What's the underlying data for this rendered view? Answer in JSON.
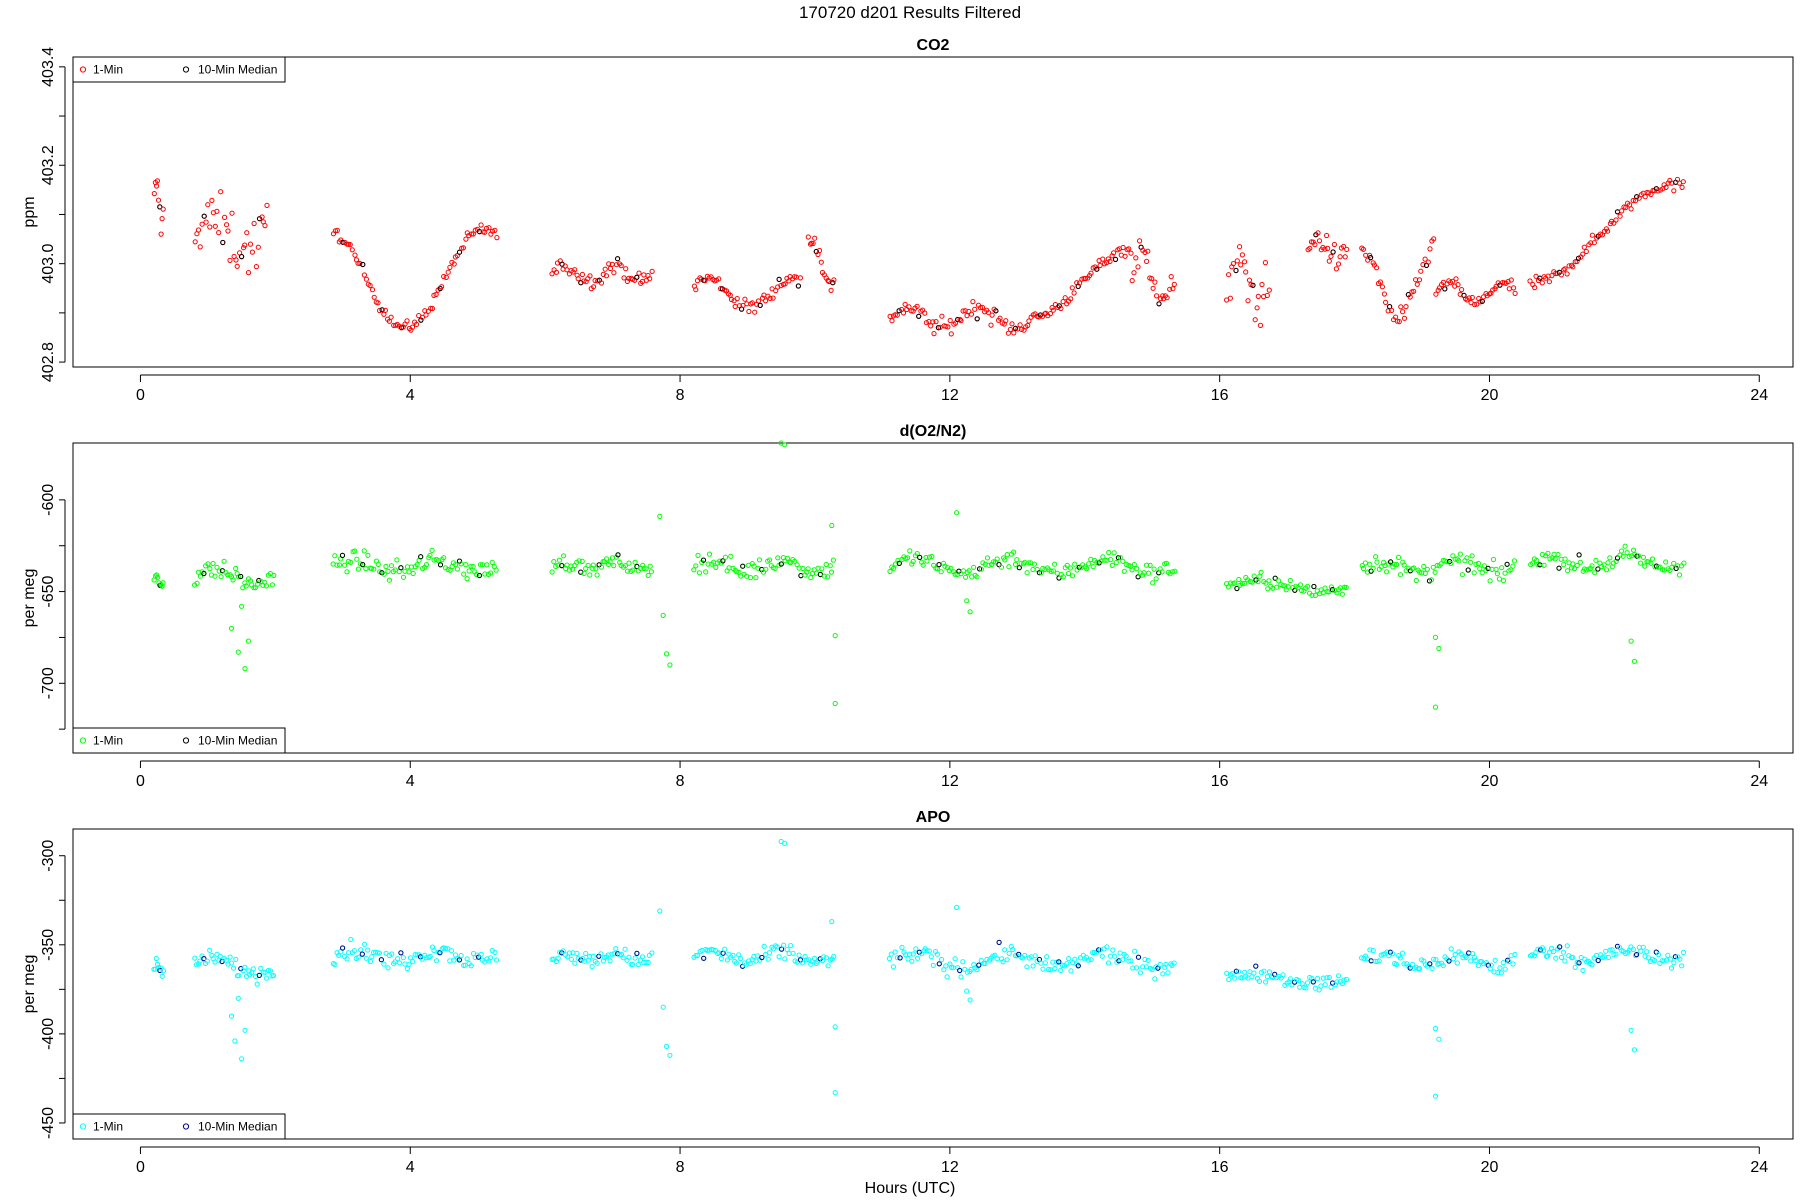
{
  "main_title": "170720    d201    Results Filtered",
  "xlabel": "Hours (UTC)",
  "colors": {
    "co2": "#ff0000",
    "o2": "#00ff00",
    "apo": "#00ffff",
    "apo_median": "#00008b",
    "median": "#000000"
  },
  "chart_data": [
    {
      "type": "scatter",
      "title": "CO2",
      "ylabel": "ppm",
      "xlim": [
        -1,
        24.5
      ],
      "ylim": [
        402.79,
        403.42
      ],
      "x_ticks": [
        0,
        4,
        8,
        12,
        16,
        20,
        24
      ],
      "y_ticks": [
        402.8,
        403.0,
        403.2,
        403.4
      ],
      "y_tick_labels": [
        "402.8",
        "403.0",
        "403.2",
        "403.4"
      ],
      "y_minor_ticks": [
        402.9,
        403.1,
        403.3
      ],
      "legend": {
        "position": "top-left",
        "entries": [
          "1-Min",
          "10-Min Median"
        ]
      },
      "series": [
        {
          "name": "1-Min",
          "color": "#ff0000",
          "segments": [
            {
              "x0": 0.2,
              "x1": 0.35,
              "ymid": 403.12,
              "amp": 0.04,
              "noise": 0.05,
              "cycles": 1,
              "phase": 0
            },
            {
              "x0": 0.8,
              "x1": 1.9,
              "ymid": 403.06,
              "amp": 0.03,
              "noise": 0.12,
              "cycles": 1,
              "phase": 0.3
            },
            {
              "x0": 2.85,
              "x1": 5.3,
              "ymid": 402.97,
              "amp": 0.1,
              "noise": 0.025,
              "cycles": 1.05,
              "phase": 1.8
            },
            {
              "x0": 6.1,
              "x1": 7.6,
              "ymid": 402.98,
              "amp": 0.015,
              "noise": 0.03,
              "cycles": 2,
              "phase": 0
            },
            {
              "x0": 8.2,
              "x1": 9.8,
              "ymid": 402.94,
              "amp": 0.03,
              "noise": 0.03,
              "cycles": 1.3,
              "phase": 0.5
            },
            {
              "x0": 9.9,
              "x1": 10.3,
              "ymid": 403.0,
              "amp": 0.05,
              "noise": 0.04,
              "cycles": 0.6,
              "phase": 1.2
            },
            {
              "x0": 11.1,
              "x1": 13.2,
              "ymid": 402.89,
              "amp": 0.02,
              "noise": 0.035,
              "cycles": 2,
              "phase": 0
            },
            {
              "x0": 13.2,
              "x1": 14.7,
              "ymid": 402.96,
              "amp": 0.07,
              "noise": 0.025,
              "cycles": 0.5,
              "phase": -1.57
            },
            {
              "x0": 14.7,
              "x1": 15.35,
              "ymid": 402.97,
              "amp": 0.05,
              "noise": 0.07,
              "cycles": 1,
              "phase": 0
            },
            {
              "x0": 16.1,
              "x1": 16.75,
              "ymid": 402.96,
              "amp": 0.03,
              "noise": 0.11,
              "cycles": 1,
              "phase": 0
            },
            {
              "x0": 17.3,
              "x1": 17.9,
              "ymid": 403.03,
              "amp": 0.02,
              "noise": 0.05,
              "cycles": 1,
              "phase": 0
            },
            {
              "x0": 18.1,
              "x1": 19.2,
              "ymid": 402.96,
              "amp": 0.07,
              "noise": 0.04,
              "cycles": 1,
              "phase": 1.57
            },
            {
              "x0": 19.2,
              "x1": 20.4,
              "ymid": 402.94,
              "amp": 0.02,
              "noise": 0.025,
              "cycles": 1.5,
              "phase": 0
            },
            {
              "x0": 20.6,
              "x1": 22.9,
              "ymid": 403.06,
              "amp": 0.1,
              "noise": 0.025,
              "cycles": 0.55,
              "phase": -1.57
            }
          ]
        }
      ]
    },
    {
      "type": "scatter",
      "title": "d(O2/N2)",
      "ylabel": "per meg",
      "xlim": [
        -1,
        24.5
      ],
      "ylim": [
        -738,
        -569
      ],
      "x_ticks": [
        0,
        4,
        8,
        12,
        16,
        20,
        24
      ],
      "y_ticks": [
        -600,
        -650,
        -700
      ],
      "y_tick_labels": [
        "-600",
        "-650",
        "-700"
      ],
      "y_minor_ticks": [
        -625,
        -675,
        -725
      ],
      "legend": {
        "position": "bottom-left",
        "entries": [
          "1-Min",
          "10-Min Median"
        ]
      },
      "series": [
        {
          "name": "1-Min",
          "color": "#00ff00",
          "segments": [
            {
              "x0": 0.2,
              "x1": 0.35,
              "ymid": -643,
              "amp": 3,
              "noise": 8,
              "cycles": 1,
              "phase": 0
            },
            {
              "x0": 0.8,
              "x1": 2.0,
              "ymid": -642,
              "amp": 4,
              "noise": 10,
              "cycles": 1,
              "phase": 0
            },
            {
              "x0": 2.85,
              "x1": 5.3,
              "ymid": -636,
              "amp": 3,
              "noise": 10,
              "cycles": 2,
              "phase": 0
            },
            {
              "x0": 6.1,
              "x1": 7.6,
              "ymid": -636,
              "amp": 2,
              "noise": 8,
              "cycles": 2,
              "phase": 0
            },
            {
              "x0": 8.2,
              "x1": 10.3,
              "ymid": -636,
              "amp": 3,
              "noise": 10,
              "cycles": 2,
              "phase": 0
            },
            {
              "x0": 11.1,
              "x1": 15.35,
              "ymid": -636,
              "amp": 4,
              "noise": 10,
              "cycles": 3,
              "phase": 0
            },
            {
              "x0": 16.1,
              "x1": 17.9,
              "ymid": -647,
              "amp": 3,
              "noise": 8,
              "cycles": 1,
              "phase": 0
            },
            {
              "x0": 18.1,
              "x1": 20.4,
              "ymid": -637,
              "amp": 3,
              "noise": 10,
              "cycles": 2,
              "phase": 0
            },
            {
              "x0": 20.6,
              "x1": 22.9,
              "ymid": -634,
              "amp": 3,
              "noise": 9,
              "cycles": 2,
              "phase": 0
            }
          ],
          "outliers": [
            [
              1.35,
              -670
            ],
            [
              1.45,
              -683
            ],
            [
              1.5,
              -658
            ],
            [
              1.55,
              -692
            ],
            [
              1.6,
              -677
            ],
            [
              7.75,
              -663
            ],
            [
              7.8,
              -684
            ],
            [
              7.85,
              -690
            ],
            [
              7.7,
              -609
            ],
            [
              9.5,
              -569
            ],
            [
              9.55,
              -570
            ],
            [
              10.3,
              -674
            ],
            [
              10.3,
              -711
            ],
            [
              10.25,
              -614
            ],
            [
              12.1,
              -607
            ],
            [
              12.25,
              -655
            ],
            [
              12.3,
              -661
            ],
            [
              19.2,
              -675
            ],
            [
              19.25,
              -681
            ],
            [
              19.2,
              -713
            ],
            [
              22.1,
              -677
            ],
            [
              22.15,
              -688
            ]
          ]
        }
      ]
    },
    {
      "type": "scatter",
      "title": "APO",
      "ylabel": "per meg",
      "xlim": [
        -1,
        24.5
      ],
      "ylim": [
        -459,
        -285
      ],
      "x_ticks": [
        0,
        4,
        8,
        12,
        16,
        20,
        24
      ],
      "y_ticks": [
        -300,
        -350,
        -400,
        -450
      ],
      "y_tick_labels": [
        "-300",
        "-350",
        "-400",
        "-450"
      ],
      "y_minor_ticks": [
        -325,
        -375,
        -425
      ],
      "legend": {
        "position": "bottom-left",
        "entries": [
          "1-Min",
          "10-Min Median"
        ]
      },
      "series": [
        {
          "name": "1-Min",
          "color": "#00ffff",
          "segments": [
            {
              "x0": 0.2,
              "x1": 0.35,
              "ymid": -363,
              "amp": 3,
              "noise": 8,
              "cycles": 1,
              "phase": 0
            },
            {
              "x0": 0.8,
              "x1": 2.0,
              "ymid": -362,
              "amp": 4,
              "noise": 10,
              "cycles": 1,
              "phase": 0
            },
            {
              "x0": 2.85,
              "x1": 5.3,
              "ymid": -356,
              "amp": 3,
              "noise": 10,
              "cycles": 2,
              "phase": 0
            },
            {
              "x0": 6.1,
              "x1": 7.6,
              "ymid": -357,
              "amp": 2,
              "noise": 8,
              "cycles": 2,
              "phase": 0
            },
            {
              "x0": 8.2,
              "x1": 10.3,
              "ymid": -357,
              "amp": 3,
              "noise": 10,
              "cycles": 2,
              "phase": 0
            },
            {
              "x0": 11.1,
              "x1": 15.35,
              "ymid": -359,
              "amp": 4,
              "noise": 10,
              "cycles": 3,
              "phase": 0
            },
            {
              "x0": 16.1,
              "x1": 17.9,
              "ymid": -369,
              "amp": 3,
              "noise": 8,
              "cycles": 1,
              "phase": 0
            },
            {
              "x0": 18.1,
              "x1": 20.4,
              "ymid": -359,
              "amp": 3,
              "noise": 10,
              "cycles": 2,
              "phase": 0
            },
            {
              "x0": 20.6,
              "x1": 22.9,
              "ymid": -356,
              "amp": 3,
              "noise": 9,
              "cycles": 2,
              "phase": 0
            }
          ],
          "outliers": [
            [
              1.35,
              -390
            ],
            [
              1.4,
              -404
            ],
            [
              1.45,
              -380
            ],
            [
              1.5,
              -414
            ],
            [
              1.55,
              -398
            ],
            [
              7.75,
              -385
            ],
            [
              7.8,
              -407
            ],
            [
              7.85,
              -412
            ],
            [
              7.7,
              -331
            ],
            [
              9.5,
              -292
            ],
            [
              9.55,
              -293
            ],
            [
              10.3,
              -396
            ],
            [
              10.3,
              -433
            ],
            [
              10.25,
              -337
            ],
            [
              12.1,
              -329
            ],
            [
              12.25,
              -376
            ],
            [
              12.3,
              -381
            ],
            [
              19.2,
              -397
            ],
            [
              19.25,
              -403
            ],
            [
              19.2,
              -435
            ],
            [
              22.1,
              -398
            ],
            [
              22.15,
              -409
            ]
          ]
        }
      ]
    }
  ]
}
